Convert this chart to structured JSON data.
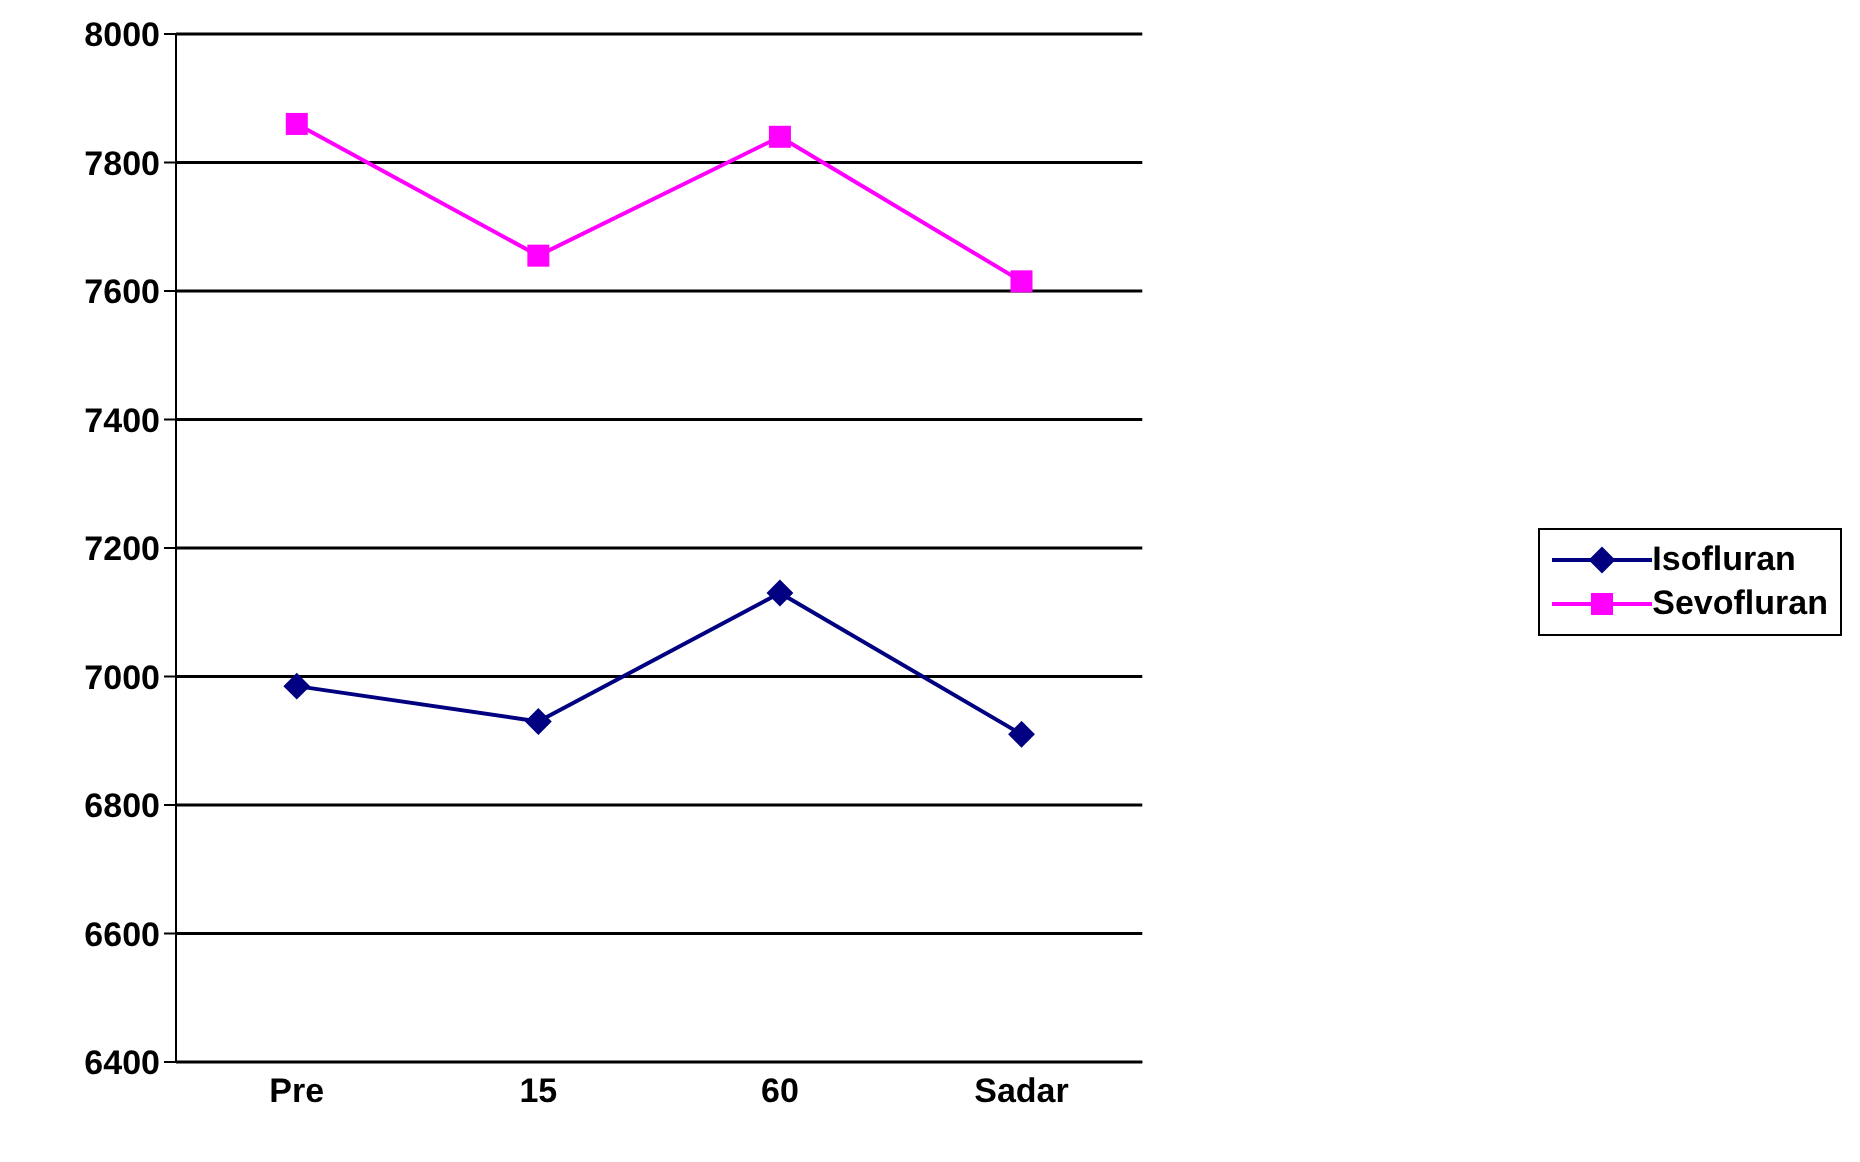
{
  "chart_data": {
    "type": "line",
    "categories": [
      "Pre",
      "15",
      "60",
      "Sadar"
    ],
    "series": [
      {
        "name": "Isofluran",
        "color": "#000080",
        "marker": "diamond",
        "values": [
          6985,
          6930,
          7130,
          6910
        ]
      },
      {
        "name": "Sevofluran",
        "color": "#ff00ff",
        "marker": "square",
        "values": [
          7860,
          7655,
          7840,
          7615
        ]
      }
    ],
    "ylim": [
      6400,
      8000
    ],
    "yticks": [
      6400,
      6600,
      6800,
      7000,
      7200,
      7400,
      7600,
      7800,
      8000
    ],
    "grid": "y",
    "legend": "right"
  }
}
